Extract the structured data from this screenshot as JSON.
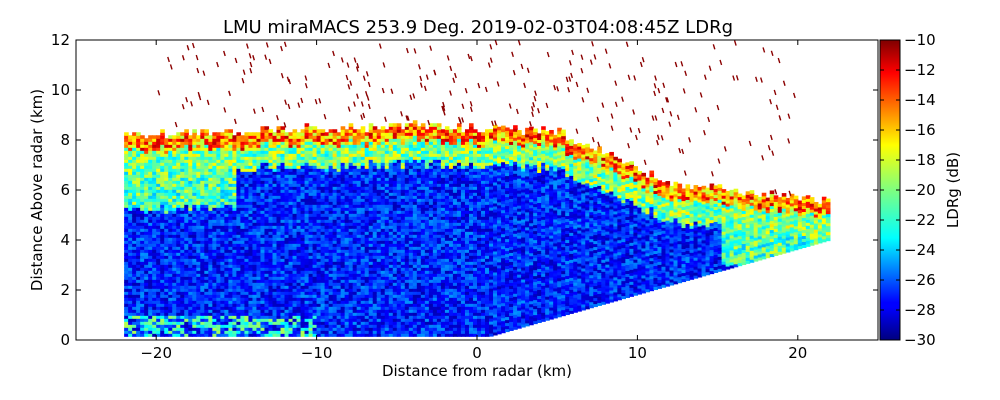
{
  "chart_data": {
    "type": "heatmap",
    "title": "LMU miraMACS 253.9 Deg. 2019-02-03T04:08:45Z  LDRg",
    "xlabel": "Distance from radar (km)",
    "ylabel": "Distance Above radar  (km)",
    "xlim": [
      -25,
      25
    ],
    "ylim": [
      0,
      12
    ],
    "x_ticks": [
      -20,
      -10,
      0,
      10,
      20
    ],
    "y_ticks": [
      0,
      2,
      4,
      6,
      8,
      10,
      12
    ],
    "colorbar": {
      "label": "LDRg (dB)",
      "range": [
        -30,
        -10
      ],
      "ticks": [
        -30,
        -28,
        -26,
        -24,
        -22,
        -20,
        -18,
        -16,
        -14,
        -12,
        -10
      ],
      "colormap": "jet"
    },
    "scan": {
      "left_edge_km": -22,
      "right_edge_km": 22,
      "right_edge_top_km": 4,
      "cloud_top_km": [
        8.2,
        8.5,
        8.3,
        6.2,
        5.5
      ],
      "cloud_top_at_x_km": [
        -20,
        -5,
        5,
        12,
        21.5
      ]
    }
  },
  "colors": {
    "jet_low": "#00007f",
    "jet_mid": "#7fff7f",
    "jet_high": "#7f0000"
  }
}
